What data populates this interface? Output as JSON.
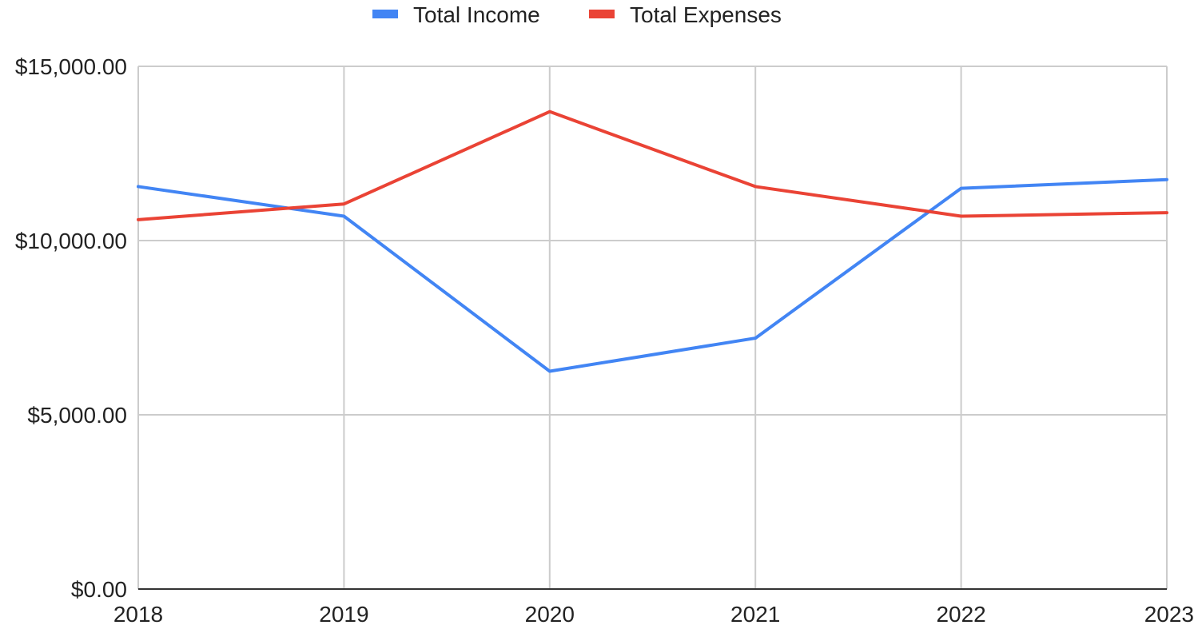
{
  "chart_data": {
    "type": "line",
    "title": "",
    "xlabel": "",
    "ylabel": "",
    "categories": [
      "2018",
      "2019",
      "2020",
      "2021",
      "2022",
      "2023"
    ],
    "series": [
      {
        "name": "Total Income",
        "color": "#4285F4",
        "values": [
          11550,
          10700,
          6250,
          7200,
          11500,
          11750
        ]
      },
      {
        "name": "Total Expenses",
        "color": "#EA4335",
        "values": [
          10600,
          11050,
          13700,
          11550,
          10700,
          10800
        ]
      }
    ],
    "ylim": [
      0,
      15000
    ],
    "y_ticks": [
      0,
      5000,
      10000,
      15000
    ],
    "y_tick_labels": [
      "$0.00",
      "$5,000.00",
      "$10,000.00",
      "$15,000.00"
    ],
    "grid": true,
    "legend_position": "top-center"
  }
}
